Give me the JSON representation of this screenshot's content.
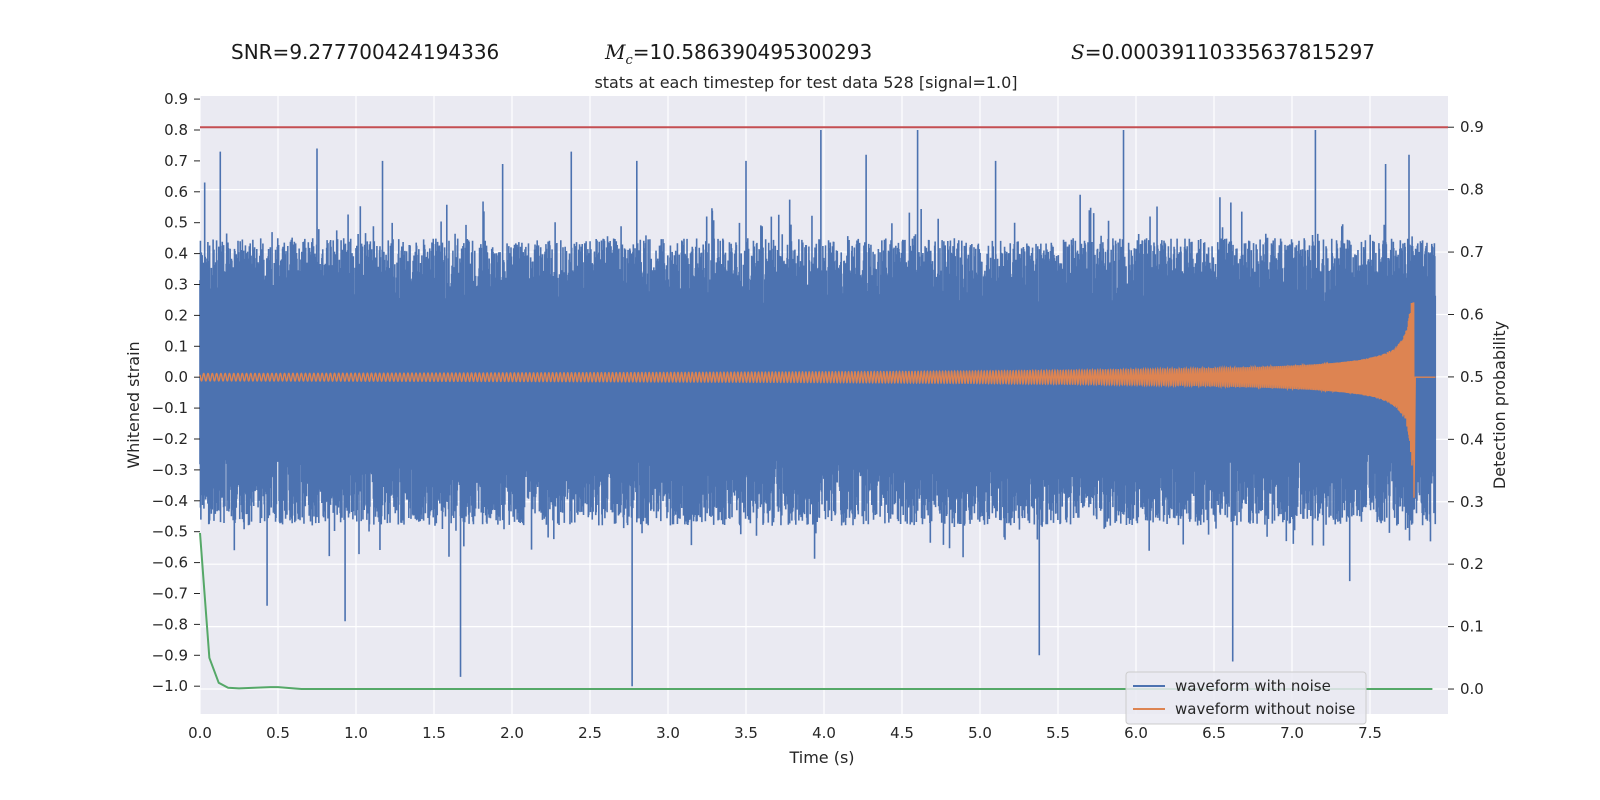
{
  "stats": {
    "snr_label": "SNR=",
    "snr_value": "9.277700424194336",
    "mc_symbol": "M",
    "mc_sub": "c",
    "mc_value": "=10.586390495300293",
    "s_symbol": "S",
    "s_value": "=0.00039110335637815297"
  },
  "chart_data": {
    "type": "line",
    "title": "stats at each timestep for test data 528 [signal=1.0]",
    "xlabel": "Time (s)",
    "ylabel": "Whitened strain",
    "ylabel_right": "Detection probability",
    "xlim": [
      0,
      8
    ],
    "ylim": [
      -1.09,
      0.91
    ],
    "ylim_right": [
      -0.04,
      0.95
    ],
    "x_ticks": [
      "0.0",
      "0.5",
      "1.0",
      "1.5",
      "2.0",
      "2.5",
      "3.0",
      "3.5",
      "4.0",
      "4.5",
      "5.0",
      "5.5",
      "6.0",
      "6.5",
      "7.0",
      "7.5"
    ],
    "y_ticks": [
      "0.9",
      "0.8",
      "0.7",
      "0.6",
      "0.5",
      "0.4",
      "0.3",
      "0.2",
      "0.1",
      "0.0",
      "−0.1",
      "−0.2",
      "−0.3",
      "−0.4",
      "−0.5",
      "−0.6",
      "−0.7",
      "−0.8",
      "−0.9",
      "−1.0"
    ],
    "y_ticks_right": [
      "0.9",
      "0.8",
      "0.7",
      "0.6",
      "0.5",
      "0.4",
      "0.3",
      "0.2",
      "0.1",
      "0.0"
    ],
    "grid": true,
    "legend_position": "lower-right",
    "series": [
      {
        "name": "waveform with noise",
        "axis": "left",
        "color": "#4c72b0",
        "envelope_upper": 0.45,
        "envelope_lower": -0.48,
        "peaks": [
          [
            0.03,
            0.63
          ],
          [
            0.13,
            0.73
          ],
          [
            0.75,
            0.74
          ],
          [
            1.17,
            0.7
          ],
          [
            1.94,
            0.69
          ],
          [
            2.38,
            0.73
          ],
          [
            2.8,
            0.7
          ],
          [
            3.5,
            0.7
          ],
          [
            3.98,
            0.8
          ],
          [
            4.27,
            0.72
          ],
          [
            4.6,
            0.8
          ],
          [
            5.1,
            0.7
          ],
          [
            5.92,
            0.8
          ],
          [
            7.15,
            0.8
          ],
          [
            7.6,
            0.69
          ],
          [
            7.75,
            0.72
          ],
          [
            0.22,
            -0.56
          ],
          [
            0.43,
            -0.74
          ],
          [
            0.93,
            -0.79
          ],
          [
            1.67,
            -0.97
          ],
          [
            2.77,
            -1.0
          ],
          [
            5.38,
            -0.9
          ],
          [
            6.62,
            -0.92
          ],
          [
            7.37,
            -0.66
          ]
        ]
      },
      {
        "name": "waveform without noise",
        "axis": "left",
        "color": "#dd8452",
        "chirp_end": 7.78,
        "peak_amplitude": 0.24,
        "min_amplitude": -0.39
      },
      {
        "name": "detection probability",
        "axis": "right",
        "color": "#55a868",
        "x": [
          0.0,
          0.03,
          0.06,
          0.12,
          0.18,
          0.25,
          0.35,
          0.45,
          0.5,
          0.55,
          0.65,
          0.8,
          1.0,
          2.0,
          4.0,
          6.0,
          7.9
        ],
        "y": [
          0.25,
          0.15,
          0.05,
          0.01,
          0.002,
          0.001,
          0.002,
          0.003,
          0.003,
          0.002,
          0.0,
          0.0,
          0.0,
          0.0,
          0.0,
          0.0,
          0.0
        ]
      },
      {
        "name": "threshold",
        "axis": "right",
        "color": "#c44e52",
        "x": [
          0.0,
          8.0
        ],
        "y": [
          0.9,
          0.9
        ]
      }
    ]
  }
}
